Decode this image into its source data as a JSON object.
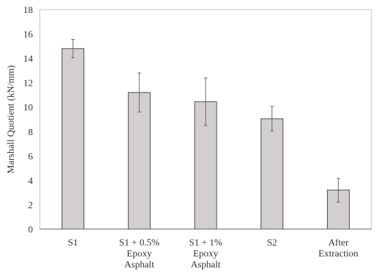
{
  "chart_data": {
    "type": "bar",
    "title": "",
    "xlabel": "",
    "ylabel": "Marshall Quotient (kN/mm)",
    "ylim": [
      0,
      18
    ],
    "yticks": [
      0,
      2,
      4,
      6,
      8,
      10,
      12,
      14,
      16,
      18
    ],
    "grid": false,
    "categories": [
      [
        "S1"
      ],
      [
        "S1 + 0.5%",
        "Epoxy",
        "Asphalt"
      ],
      [
        "S1 + 1%",
        "Epoxy",
        "Asphalt"
      ],
      [
        "S2"
      ],
      [
        "After",
        "Extraction"
      ]
    ],
    "values": [
      14.8,
      11.2,
      10.45,
      9.05,
      3.2
    ],
    "error_low": [
      14.05,
      9.6,
      8.5,
      8.05,
      2.2
    ],
    "error_high": [
      15.55,
      12.8,
      12.4,
      10.05,
      4.15
    ],
    "colors": {
      "bar_fill": "#d3cfcf",
      "bar_stroke": "#404040",
      "error_bar": "#606060",
      "axis": "#595959",
      "frame": "#bfbfbf"
    }
  }
}
